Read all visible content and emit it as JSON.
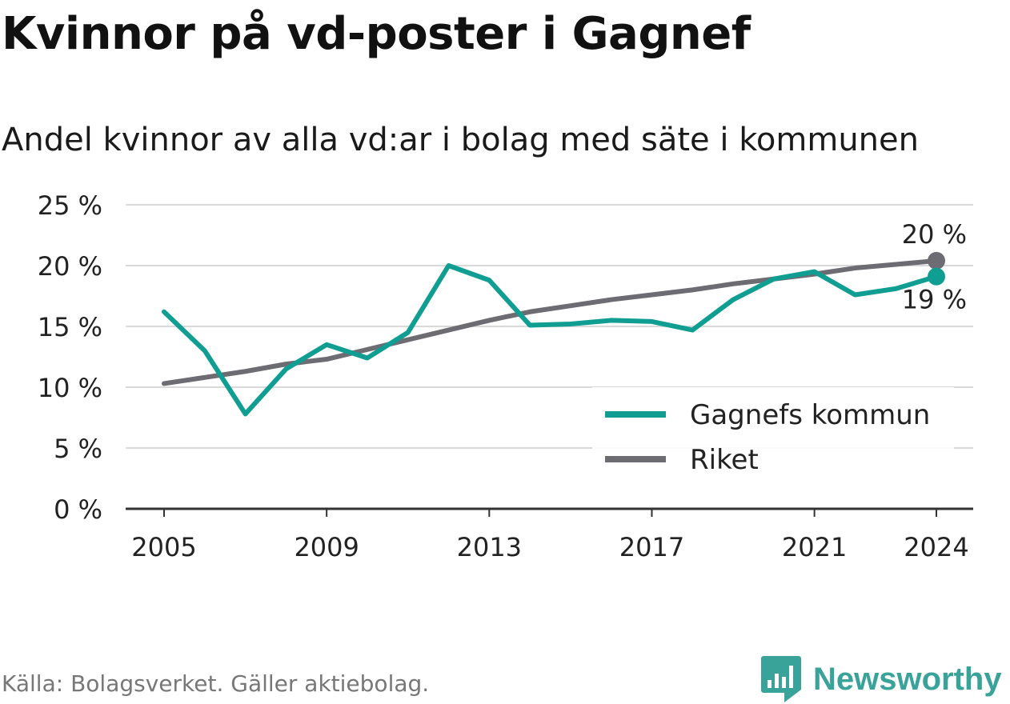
{
  "header": {
    "title": "Kvinnor på vd-poster i Gagnef",
    "subtitle": "Andel kvinnor av alla vd:ar i bolag med säte i kommunen"
  },
  "footer": {
    "source": "Källa: Bolagsverket. Gäller aktiebolag.",
    "brand": "Newsworthy"
  },
  "colors": {
    "gagnef": "#0f9e91",
    "riket": "#6d6c72",
    "grid": "#d9d9d9",
    "axis": "#333333",
    "brand": "#3aa399"
  },
  "chart_data": {
    "type": "line",
    "x": [
      2005,
      2006,
      2007,
      2008,
      2009,
      2010,
      2011,
      2012,
      2013,
      2014,
      2015,
      2016,
      2017,
      2018,
      2019,
      2020,
      2021,
      2022,
      2023,
      2024
    ],
    "series": [
      {
        "name": "Gagnefs kommun",
        "values": [
          16.2,
          13.0,
          7.8,
          11.5,
          13.5,
          12.4,
          14.5,
          20.0,
          18.8,
          15.1,
          15.2,
          15.5,
          15.4,
          14.7,
          17.2,
          18.9,
          19.5,
          17.6,
          18.1,
          19.1
        ],
        "end_label": "19 %"
      },
      {
        "name": "Riket",
        "values": [
          10.3,
          10.8,
          11.3,
          11.9,
          12.3,
          13.1,
          13.9,
          14.7,
          15.5,
          16.2,
          16.7,
          17.2,
          17.6,
          18.0,
          18.5,
          18.9,
          19.3,
          19.8,
          20.1,
          20.4
        ],
        "end_label": "20 %"
      }
    ],
    "x_ticks": [
      "2005",
      "2009",
      "2013",
      "2017",
      "2021",
      "2024"
    ],
    "y_ticks": [
      "0 %",
      "5 %",
      "10 %",
      "15 %",
      "20 %",
      "25 %"
    ],
    "ylim": [
      0,
      25
    ],
    "grid": true,
    "legend_position": "bottom-right"
  }
}
